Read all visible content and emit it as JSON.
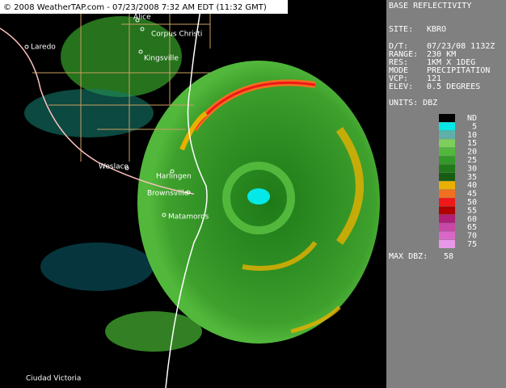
{
  "header": {
    "title": "© 2008 WeatherTAP.com - 07/23/2008 7:32 AM EDT (11:32 GMT)"
  },
  "cities": [
    {
      "label": "Alice"
    },
    {
      "label": "Corpus Christi"
    },
    {
      "label": "Kingsville"
    },
    {
      "label": "Laredo"
    },
    {
      "label": "Weslaco"
    },
    {
      "label": "Harlingen"
    },
    {
      "label": "Brownsville"
    },
    {
      "label": "Matamoros"
    },
    {
      "label": "Ciudad Victoria"
    }
  ],
  "panel": {
    "title": "BASE REFLECTIVITY",
    "rows": [
      [
        "SITE:",
        "KBRO"
      ],
      [
        "D/T:",
        "07/23/08 1132Z"
      ],
      [
        "RANGE:",
        "230 KM"
      ],
      [
        "RES:",
        "1KM X 1DEG"
      ],
      [
        "MODE",
        "PRECIPITATION"
      ],
      [
        "VCP:",
        "121"
      ],
      [
        "ELEV:",
        "0.5 DEGREES"
      ]
    ],
    "units": "UNITS: DBZ",
    "legend": [
      {
        "label": "ND",
        "color": "#000000"
      },
      {
        "label": "5",
        "color": "#04e9e7"
      },
      {
        "label": "10",
        "color": "#5fb0a8"
      },
      {
        "label": "15",
        "color": "#7ccf5a"
      },
      {
        "label": "20",
        "color": "#52b83c"
      },
      {
        "label": "25",
        "color": "#34992a"
      },
      {
        "label": "30",
        "color": "#22791a"
      },
      {
        "label": "35",
        "color": "#165c12"
      },
      {
        "label": "40",
        "color": "#e8b000"
      },
      {
        "label": "45",
        "color": "#f07020"
      },
      {
        "label": "50",
        "color": "#f01818"
      },
      {
        "label": "55",
        "color": "#b00000"
      },
      {
        "label": "60",
        "color": "#b0207a"
      },
      {
        "label": "65",
        "color": "#c848a8"
      },
      {
        "label": "70",
        "color": "#d868c8"
      },
      {
        "label": "75",
        "color": "#e898e8"
      }
    ],
    "max_label": "MAX DBZ:",
    "max_value": "58"
  }
}
